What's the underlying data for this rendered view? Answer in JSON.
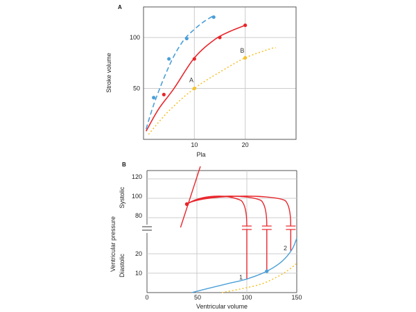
{
  "colors": {
    "red": "#e8262c",
    "blue": "#4a9fd8",
    "yellow": "#f6c12c",
    "grid": "#cccccc",
    "axis": "#333333"
  },
  "chart_data": [
    {
      "panel_label": "A",
      "type": "line",
      "xlabel": "Pla",
      "ylabel": "Stroke volume",
      "xlim": [
        0,
        30
      ],
      "ylim": [
        0,
        130
      ],
      "xticks": [
        "10",
        "20"
      ],
      "yticks": [
        "50",
        "100"
      ],
      "grid": true,
      "series": [
        {
          "color": "blue",
          "style": "dashed",
          "line": [
            [
              0.5,
              10
            ],
            [
              2,
              34
            ],
            [
              4,
              60
            ],
            [
              6,
              82
            ],
            [
              8,
              98
            ],
            [
              10,
              108
            ],
            [
              12,
              116
            ],
            [
              14,
              122
            ]
          ],
          "markers": [
            [
              2,
              41
            ],
            [
              5,
              79
            ],
            [
              8.5,
              99
            ],
            [
              13.8,
              120
            ]
          ]
        },
        {
          "color": "red",
          "style": "solid",
          "line": [
            [
              0.5,
              8
            ],
            [
              3,
              30
            ],
            [
              6,
              50
            ],
            [
              10,
              80
            ],
            [
              14,
              98
            ],
            [
              17,
              106
            ],
            [
              20,
              112
            ]
          ],
          "markers": [
            [
              4,
              44
            ],
            [
              10,
              79
            ],
            [
              15,
              100
            ],
            [
              20,
              112
            ]
          ]
        },
        {
          "color": "yellow",
          "style": "dotted",
          "line": [
            [
              1,
              5
            ],
            [
              5,
              28
            ],
            [
              10,
              50
            ],
            [
              15,
              66
            ],
            [
              20,
              80
            ],
            [
              25,
              89
            ],
            [
              26,
              90
            ]
          ],
          "markers": [
            [
              10,
              50
            ],
            [
              20,
              80
            ]
          ]
        }
      ],
      "annotations": [
        {
          "text": "A",
          "x": 9,
          "y": 56
        },
        {
          "text": "B",
          "x": 19,
          "y": 85
        }
      ]
    },
    {
      "panel_label": "B",
      "type": "line",
      "xlabel": "Ventricular volume",
      "ylabel": "Ventricular pressure",
      "ylabel_sections": [
        "Systolic",
        "Diastolic"
      ],
      "xticks": [
        "0",
        "50",
        "100",
        "150"
      ],
      "yticks": [
        "10",
        "20",
        "80",
        "100",
        "120"
      ],
      "xlim": [
        0,
        150
      ],
      "y_axis_break": true,
      "grid": true,
      "series": [
        {
          "color": "red",
          "name": "end-systolic pressure-volume line",
          "points": [
            [
              35,
              55
            ],
            [
              50,
              133
            ]
          ]
        },
        {
          "color": "red",
          "name": "loops",
          "loops": [
            {
              "edv": 100,
              "top": 102
            },
            {
              "edv": 120,
              "top": 102
            },
            {
              "edv": 144,
              "top": 102
            }
          ],
          "origin": [
            40,
            94
          ]
        },
        {
          "color": "blue",
          "name": "diastolic filling curve 1",
          "points": [
            [
              45,
              0
            ],
            [
              60,
              2
            ],
            [
              80,
              4.5
            ],
            [
              100,
              7
            ],
            [
              120,
              11
            ],
            [
              135,
              16
            ],
            [
              145,
              22
            ],
            [
              150,
              28
            ]
          ],
          "markers": [
            [
              40,
              94
            ],
            [
              120,
              11
            ]
          ]
        },
        {
          "color": "yellow",
          "style": "dotted",
          "name": "diastolic filling curve 2",
          "points": [
            [
              75,
              0
            ],
            [
              95,
              2
            ],
            [
              115,
              4.5
            ],
            [
              130,
              8
            ],
            [
              140,
              11
            ],
            [
              150,
              15
            ]
          ]
        }
      ],
      "annotations": [
        {
          "text": "1",
          "x": 93,
          "y": 4
        },
        {
          "text": "2",
          "x": 138,
          "y": 24
        }
      ]
    }
  ]
}
